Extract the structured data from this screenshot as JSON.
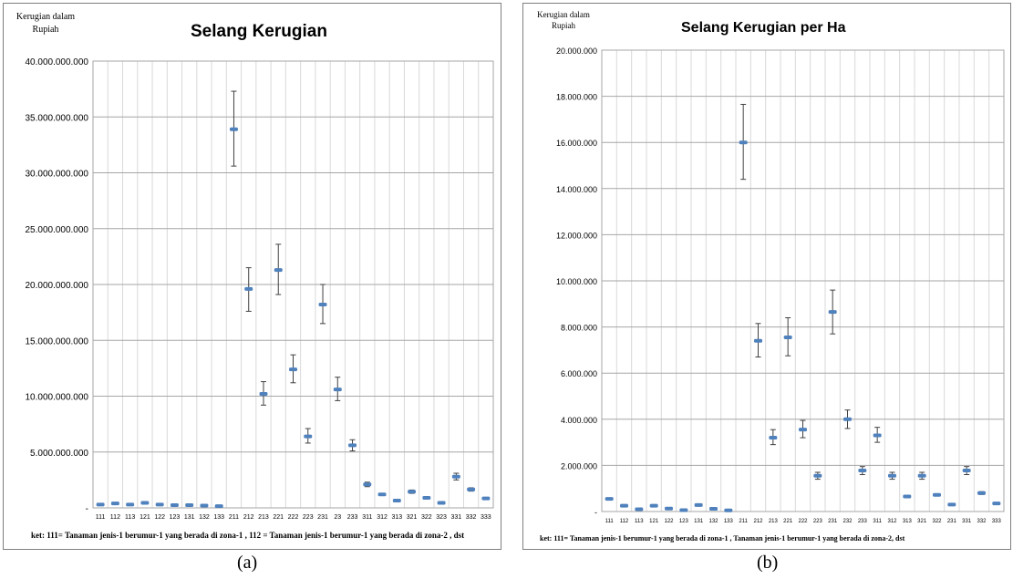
{
  "chart_data": [
    {
      "type": "errorbar",
      "title": "Selang Kerugian",
      "ylabel_line1": "Kerugian dalam",
      "ylabel_line2": "Rupiah",
      "ylim": [
        0,
        40000000000
      ],
      "yticks": [
        0,
        5000000000,
        10000000000,
        15000000000,
        20000000000,
        25000000000,
        30000000000,
        35000000000,
        40000000000
      ],
      "ytick_labels": [
        "-",
        "5.000.000.000",
        "10.000.000.000",
        "15.000.000.000",
        "20.000.000.000",
        "25.000.000.000",
        "30.000.000.000",
        "35.000.000.000",
        "40.000.000.000"
      ],
      "grid": true,
      "categories": [
        "111",
        "112",
        "113",
        "121",
        "122",
        "123",
        "131",
        "132",
        "133",
        "211",
        "212",
        "213",
        "221",
        "222",
        "223",
        "231",
        "23",
        "233",
        "311",
        "312",
        "313",
        "321",
        "322",
        "323",
        "331",
        "332",
        "333"
      ],
      "values": [
        300000000,
        400000000,
        300000000,
        450000000,
        300000000,
        250000000,
        250000000,
        200000000,
        150000000,
        33900000000,
        19600000000,
        10200000000,
        21300000000,
        12400000000,
        6400000000,
        18200000000,
        10600000000,
        5600000000,
        2100000000,
        1200000000,
        650000000,
        1450000000,
        900000000,
        450000000,
        2800000000,
        1650000000,
        850000000
      ],
      "lower": [
        280000000,
        370000000,
        280000000,
        420000000,
        280000000,
        230000000,
        230000000,
        185000000,
        140000000,
        30600000000,
        17600000000,
        9200000000,
        19100000000,
        11200000000,
        5800000000,
        16500000000,
        9600000000,
        5100000000,
        1900000000,
        1100000000,
        600000000,
        1300000000,
        850000000,
        420000000,
        2500000000,
        1500000000,
        800000000
      ],
      "upper": [
        320000000,
        430000000,
        320000000,
        480000000,
        320000000,
        270000000,
        270000000,
        215000000,
        160000000,
        37300000000,
        21500000000,
        11300000000,
        23600000000,
        13700000000,
        7100000000,
        20000000000,
        11700000000,
        6100000000,
        2300000000,
        1300000000,
        700000000,
        1600000000,
        950000000,
        480000000,
        3100000000,
        1800000000,
        900000000
      ],
      "note": "ket: 111= Tanaman jenis-1 berumur-1 yang berada di zona-1 , 112 = Tanaman  jenis-1 berumur-1 yang berada di zona-2 , dst",
      "marker_color": "#4f81bd",
      "caption": "(a)"
    },
    {
      "type": "errorbar",
      "title": "Selang Kerugian per Ha",
      "ylabel_line1": "Kerugian dalam",
      "ylabel_line2": "Rupiah",
      "ylim": [
        0,
        20000000
      ],
      "yticks": [
        0,
        2000000,
        4000000,
        6000000,
        8000000,
        10000000,
        12000000,
        14000000,
        16000000,
        18000000,
        20000000
      ],
      "ytick_labels": [
        "-",
        "2.000.000",
        "4.000.000",
        "6.000.000",
        "8.000.000",
        "10.000.000",
        "12.000.000",
        "14.000.000",
        "16.000.000",
        "18.000.000",
        "20.000.000"
      ],
      "grid": true,
      "categories": [
        "111",
        "112",
        "113",
        "121",
        "122",
        "123",
        "131",
        "132",
        "133",
        "211",
        "212",
        "213",
        "221",
        "222",
        "223",
        "231",
        "232",
        "233",
        "311",
        "312",
        "313",
        "321",
        "322",
        "231",
        "331",
        "332",
        "333"
      ],
      "values": [
        550000,
        250000,
        100000,
        250000,
        130000,
        60000,
        280000,
        120000,
        50000,
        16000000,
        7400000,
        3200000,
        7550000,
        3550000,
        1550000,
        8650000,
        4000000,
        1780000,
        3300000,
        1550000,
        650000,
        1550000,
        720000,
        300000,
        1780000,
        800000,
        350000
      ],
      "lower": [
        520000,
        230000,
        90000,
        230000,
        120000,
        55000,
        260000,
        110000,
        45000,
        14400000,
        6700000,
        2900000,
        6750000,
        3200000,
        1400000,
        7700000,
        3600000,
        1600000,
        3000000,
        1400000,
        600000,
        1400000,
        680000,
        280000,
        1600000,
        740000,
        320000
      ],
      "upper": [
        580000,
        270000,
        110000,
        270000,
        140000,
        65000,
        300000,
        130000,
        55000,
        17650000,
        8150000,
        3550000,
        8400000,
        3950000,
        1700000,
        9600000,
        4400000,
        1950000,
        3650000,
        1700000,
        700000,
        1700000,
        760000,
        320000,
        1950000,
        860000,
        380000
      ],
      "note": "ket: 111= Tanaman jenis-1 berumur-1 yang berada di zona-1 , Tanaman  jenis-1 berumur-1 yang berada di zona-2, dst",
      "marker_color": "#4f81bd",
      "caption": "(b)"
    }
  ]
}
